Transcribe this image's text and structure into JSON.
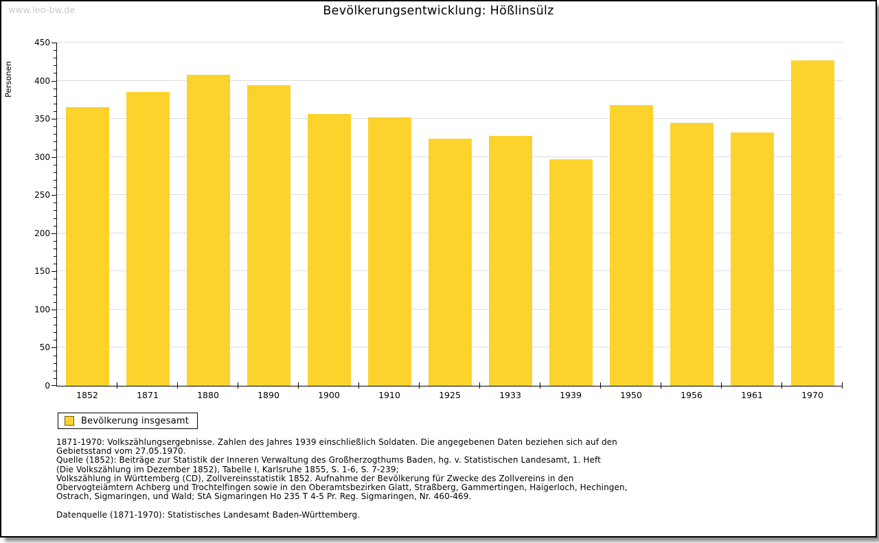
{
  "page": {
    "watermark": "www.leo-bw.de",
    "title": "Bevölkerungsentwicklung: Hößlinsülz"
  },
  "chart_data": {
    "type": "bar",
    "title": "Bevölkerungsentwicklung: Hößlinsülz",
    "xlabel": "",
    "ylabel": "Personen",
    "categories": [
      "1852",
      "1871",
      "1880",
      "1890",
      "1900",
      "1910",
      "1925",
      "1933",
      "1939",
      "1950",
      "1956",
      "1961",
      "1970"
    ],
    "values": [
      365,
      385,
      408,
      394,
      356,
      352,
      324,
      328,
      297,
      368,
      345,
      332,
      427
    ],
    "series_name": "Bevölkerung insgesamt",
    "ylim": [
      0,
      450
    ],
    "y_major_step": 50,
    "y_minor_step": 10,
    "grid": true,
    "legend_position": "bottom-left",
    "bar_color": "#FCD32D"
  },
  "legend": {
    "label": "Bevölkerung insgesamt",
    "swatch_color": "#FCD32D"
  },
  "footer": {
    "lines": [
      "1871-1970: Volkszählungsergebnisse. Zahlen des Jahres 1939 einschließlich Soldaten. Die angegebenen Daten beziehen sich auf den",
      "Gebietsstand vom 27.05.1970.",
      "Quelle (1852): Beiträge zur Statistik der Inneren Verwaltung des Großherzogthums Baden, hg. v. Statistischen Landesamt, 1. Heft",
      "(Die Volkszählung im Dezember 1852), Tabelle I, Karlsruhe 1855, S. 1-6, S. 7-239;",
      "Volkszählung in Württemberg (CD), Zollvereinsstatistik 1852. Aufnahme der Bevölkerung für Zwecke des Zollvereins in den",
      "Obervogteiämtern Achberg und Trochtelfingen sowie in den Oberamtsbezirken Glatt, Straßberg, Gammertingen, Haigerloch, Hechingen,",
      "Ostrach, Sigmaringen, und Wald; StA Sigmaringen Ho 235 T 4-5 Pr. Reg. Sigmaringen, Nr. 460-469."
    ],
    "datasource": "Datenquelle (1871-1970): Statistisches Landesamt Baden-Württemberg."
  }
}
